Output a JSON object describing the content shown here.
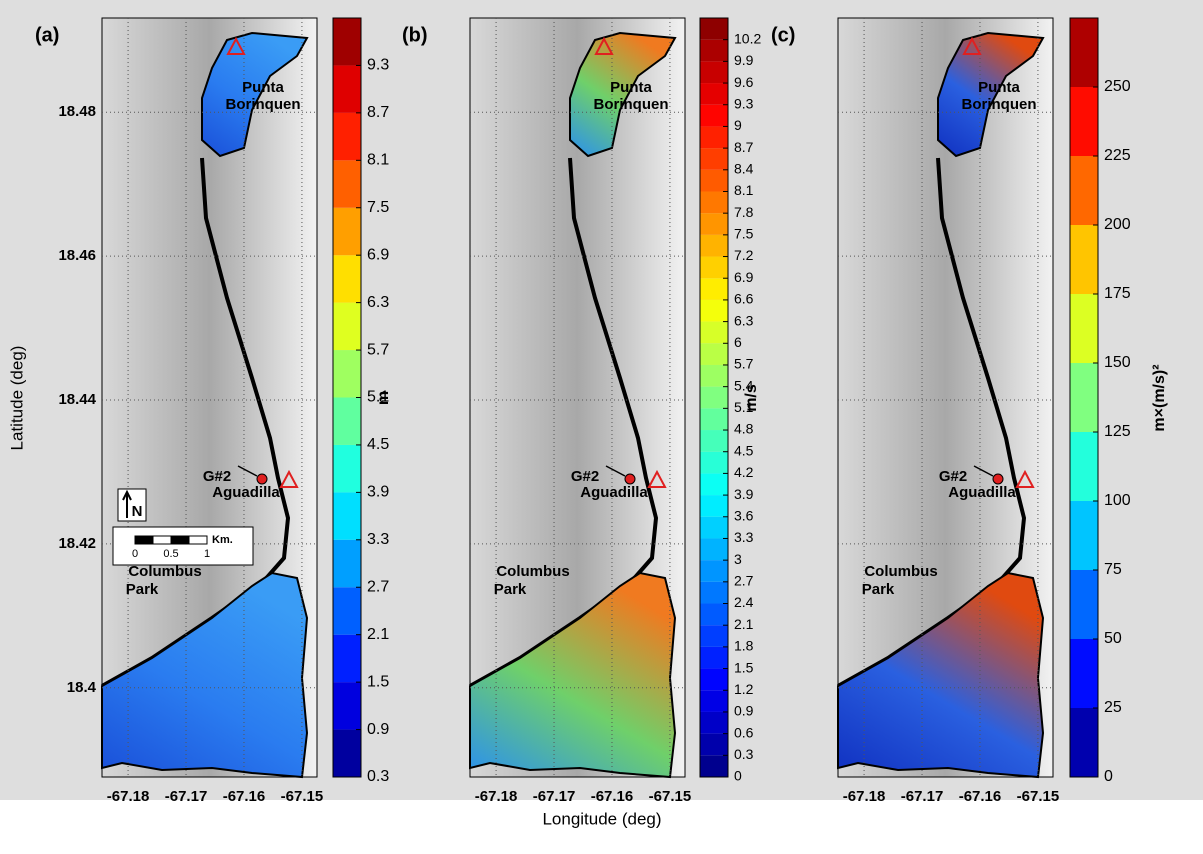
{
  "xlabel": "Longitude (deg)",
  "ylabel": "Latitude (deg)",
  "map": {
    "xlim": [
      -67.1845,
      -67.1474
    ],
    "ylim": [
      18.3876,
      18.4931
    ],
    "xticks": [
      -67.18,
      -67.17,
      -67.16,
      -67.15
    ],
    "yticks": [
      18.4,
      18.42,
      18.44,
      18.46,
      18.48
    ]
  },
  "places": {
    "punta_borinquen": [
      "Punta",
      "Borinquen"
    ],
    "g2": "G#2",
    "aguadilla": "Aguadilla",
    "columbus_park": [
      "Columbus",
      "Park"
    ]
  },
  "scale_bar": {
    "unit": "Km.",
    "ticks": [
      0,
      0.5,
      1
    ]
  },
  "north": "N",
  "panels": [
    {
      "label": "(a)",
      "colorbar": {
        "label": "m",
        "lim": [
          0.3,
          9.9
        ],
        "ticks": [
          0.3,
          0.9,
          1.5,
          2.1,
          2.7,
          3.3,
          3.9,
          4.5,
          5.1,
          5.7,
          6.3,
          6.9,
          7.5,
          8.1,
          8.7,
          9.3
        ]
      }
    },
    {
      "label": "(b)",
      "colorbar": {
        "label": "m/s",
        "lim": [
          0,
          10.5
        ],
        "ticks": [
          0,
          0.3,
          0.6,
          0.9,
          1.2,
          1.5,
          1.8,
          2.1,
          2.4,
          2.7,
          3,
          3.3,
          3.6,
          3.9,
          4.2,
          4.5,
          4.8,
          5.1,
          5.4,
          5.7,
          6,
          6.3,
          6.6,
          6.9,
          7.2,
          7.5,
          7.8,
          8.1,
          8.4,
          8.7,
          9,
          9.3,
          9.6,
          9.9,
          10.2
        ]
      }
    },
    {
      "label": "(c)",
      "colorbar": {
        "label": "m×(m/s)²",
        "lim": [
          0,
          275
        ],
        "ticks": [
          0,
          25,
          50,
          75,
          100,
          125,
          150,
          175,
          200,
          225,
          250
        ]
      }
    }
  ]
}
